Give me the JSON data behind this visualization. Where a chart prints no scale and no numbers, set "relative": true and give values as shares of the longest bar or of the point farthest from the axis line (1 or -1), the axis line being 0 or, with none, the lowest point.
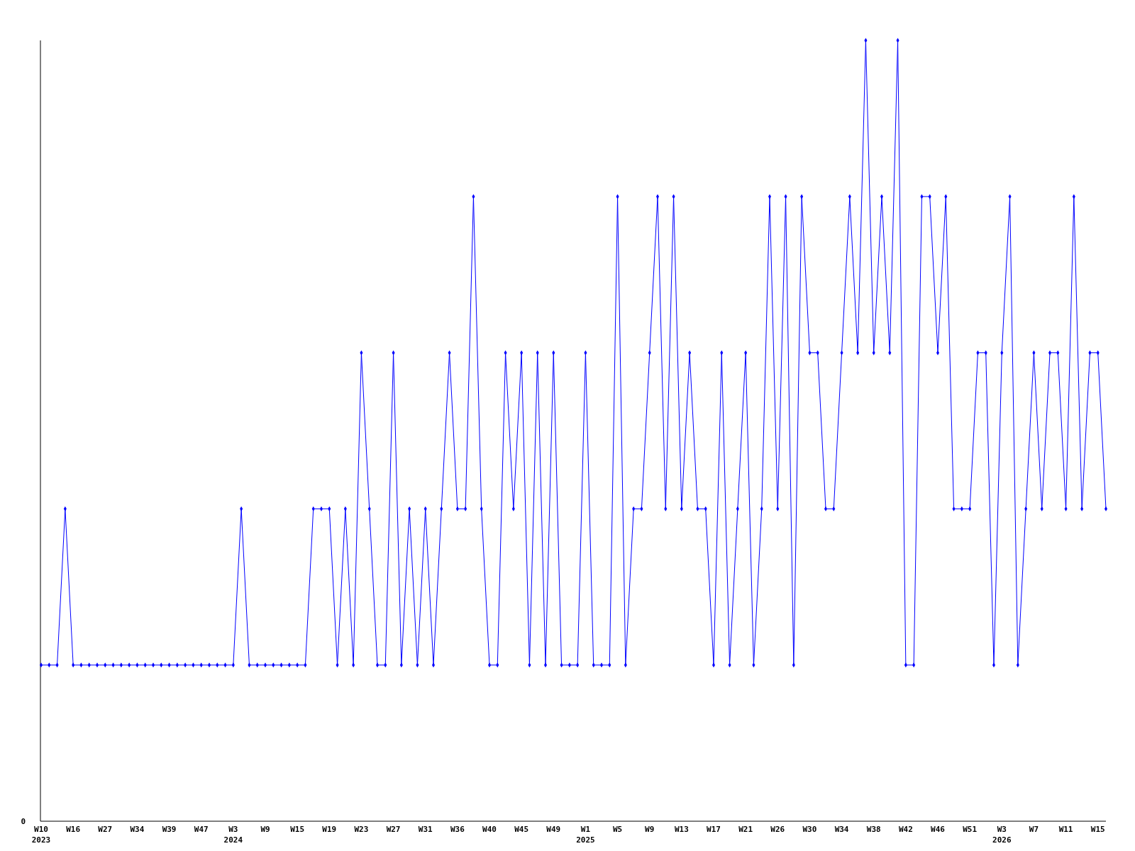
{
  "chart_data": {
    "type": "line",
    "relative": true,
    "marker": "diamond",
    "annotations": [
      "0"
    ],
    "categories": [
      "W10\n2023",
      null,
      null,
      null,
      "W16",
      null,
      null,
      null,
      "W27",
      null,
      null,
      null,
      "W34",
      null,
      null,
      null,
      "W39",
      null,
      null,
      null,
      "W47",
      null,
      null,
      null,
      "W3\n2024",
      null,
      null,
      null,
      "W9",
      null,
      null,
      null,
      "W15",
      null,
      null,
      null,
      "W19",
      null,
      null,
      null,
      "W23",
      null,
      null,
      null,
      "W27",
      null,
      null,
      null,
      "W31",
      null,
      null,
      null,
      "W36",
      null,
      null,
      null,
      "W40",
      null,
      null,
      null,
      "W45",
      null,
      null,
      null,
      "W49",
      null,
      null,
      null,
      "W1\n2025",
      null,
      null,
      null,
      "W5",
      null,
      null,
      null,
      "W9",
      null,
      null,
      null,
      "W13",
      null,
      null,
      null,
      "W17",
      null,
      null,
      null,
      "W21",
      null,
      null,
      null,
      "W26",
      null,
      null,
      null,
      "W30",
      null,
      null,
      null,
      "W34",
      null,
      null,
      null,
      "W38",
      null,
      null,
      null,
      "W42",
      null,
      null,
      null,
      "W46",
      null,
      null,
      null,
      "W51",
      null,
      null,
      null,
      "W3\n2026",
      null,
      null,
      null,
      "W7",
      null,
      null,
      null,
      "W11",
      null,
      null,
      null,
      "W15",
      null
    ],
    "series": [
      {
        "color": "#0000ff",
        "values": [
          0.2,
          0.2,
          0.2,
          0.4,
          0.2,
          0.2,
          0.2,
          0.2,
          0.2,
          0.2,
          0.2,
          0.2,
          0.2,
          0.2,
          0.2,
          0.2,
          0.2,
          0.2,
          0.2,
          0.2,
          0.2,
          0.2,
          0.2,
          0.2,
          0.2,
          0.4,
          0.2,
          0.2,
          0.2,
          0.2,
          0.2,
          0.2,
          0.2,
          0.2,
          0.4,
          0.4,
          0.4,
          0.2,
          0.4,
          0.2,
          0.6,
          0.4,
          0.2,
          0.2,
          0.6,
          0.2,
          0.4,
          0.2,
          0.4,
          0.2,
          0.4,
          0.6,
          0.4,
          0.4,
          0.8,
          0.4,
          0.2,
          0.2,
          0.6,
          0.4,
          0.6,
          0.2,
          0.6,
          0.2,
          0.6,
          0.2,
          0.2,
          0.2,
          0.6,
          0.2,
          0.2,
          0.2,
          0.8,
          0.2,
          0.4,
          0.4,
          0.6,
          0.8,
          0.4,
          0.8,
          0.4,
          0.6,
          0.4,
          0.4,
          0.2,
          0.6,
          0.2,
          0.4,
          0.6,
          0.2,
          0.4,
          0.8,
          0.4,
          0.8,
          0.2,
          0.8,
          0.6,
          0.6,
          0.4,
          0.4,
          0.6,
          0.8,
          0.6,
          1,
          0.6,
          0.8,
          0.6,
          1,
          0.2,
          0.2,
          0.8,
          0.8,
          0.6,
          0.8,
          0.4,
          0.4,
          0.4,
          0.6,
          0.6,
          0.2,
          0.6,
          0.8,
          0.2,
          0.4,
          0.6,
          0.4,
          0.6,
          0.6,
          0.4,
          0.8,
          0.4,
          0.6,
          0.6,
          0.4
        ]
      }
    ]
  }
}
